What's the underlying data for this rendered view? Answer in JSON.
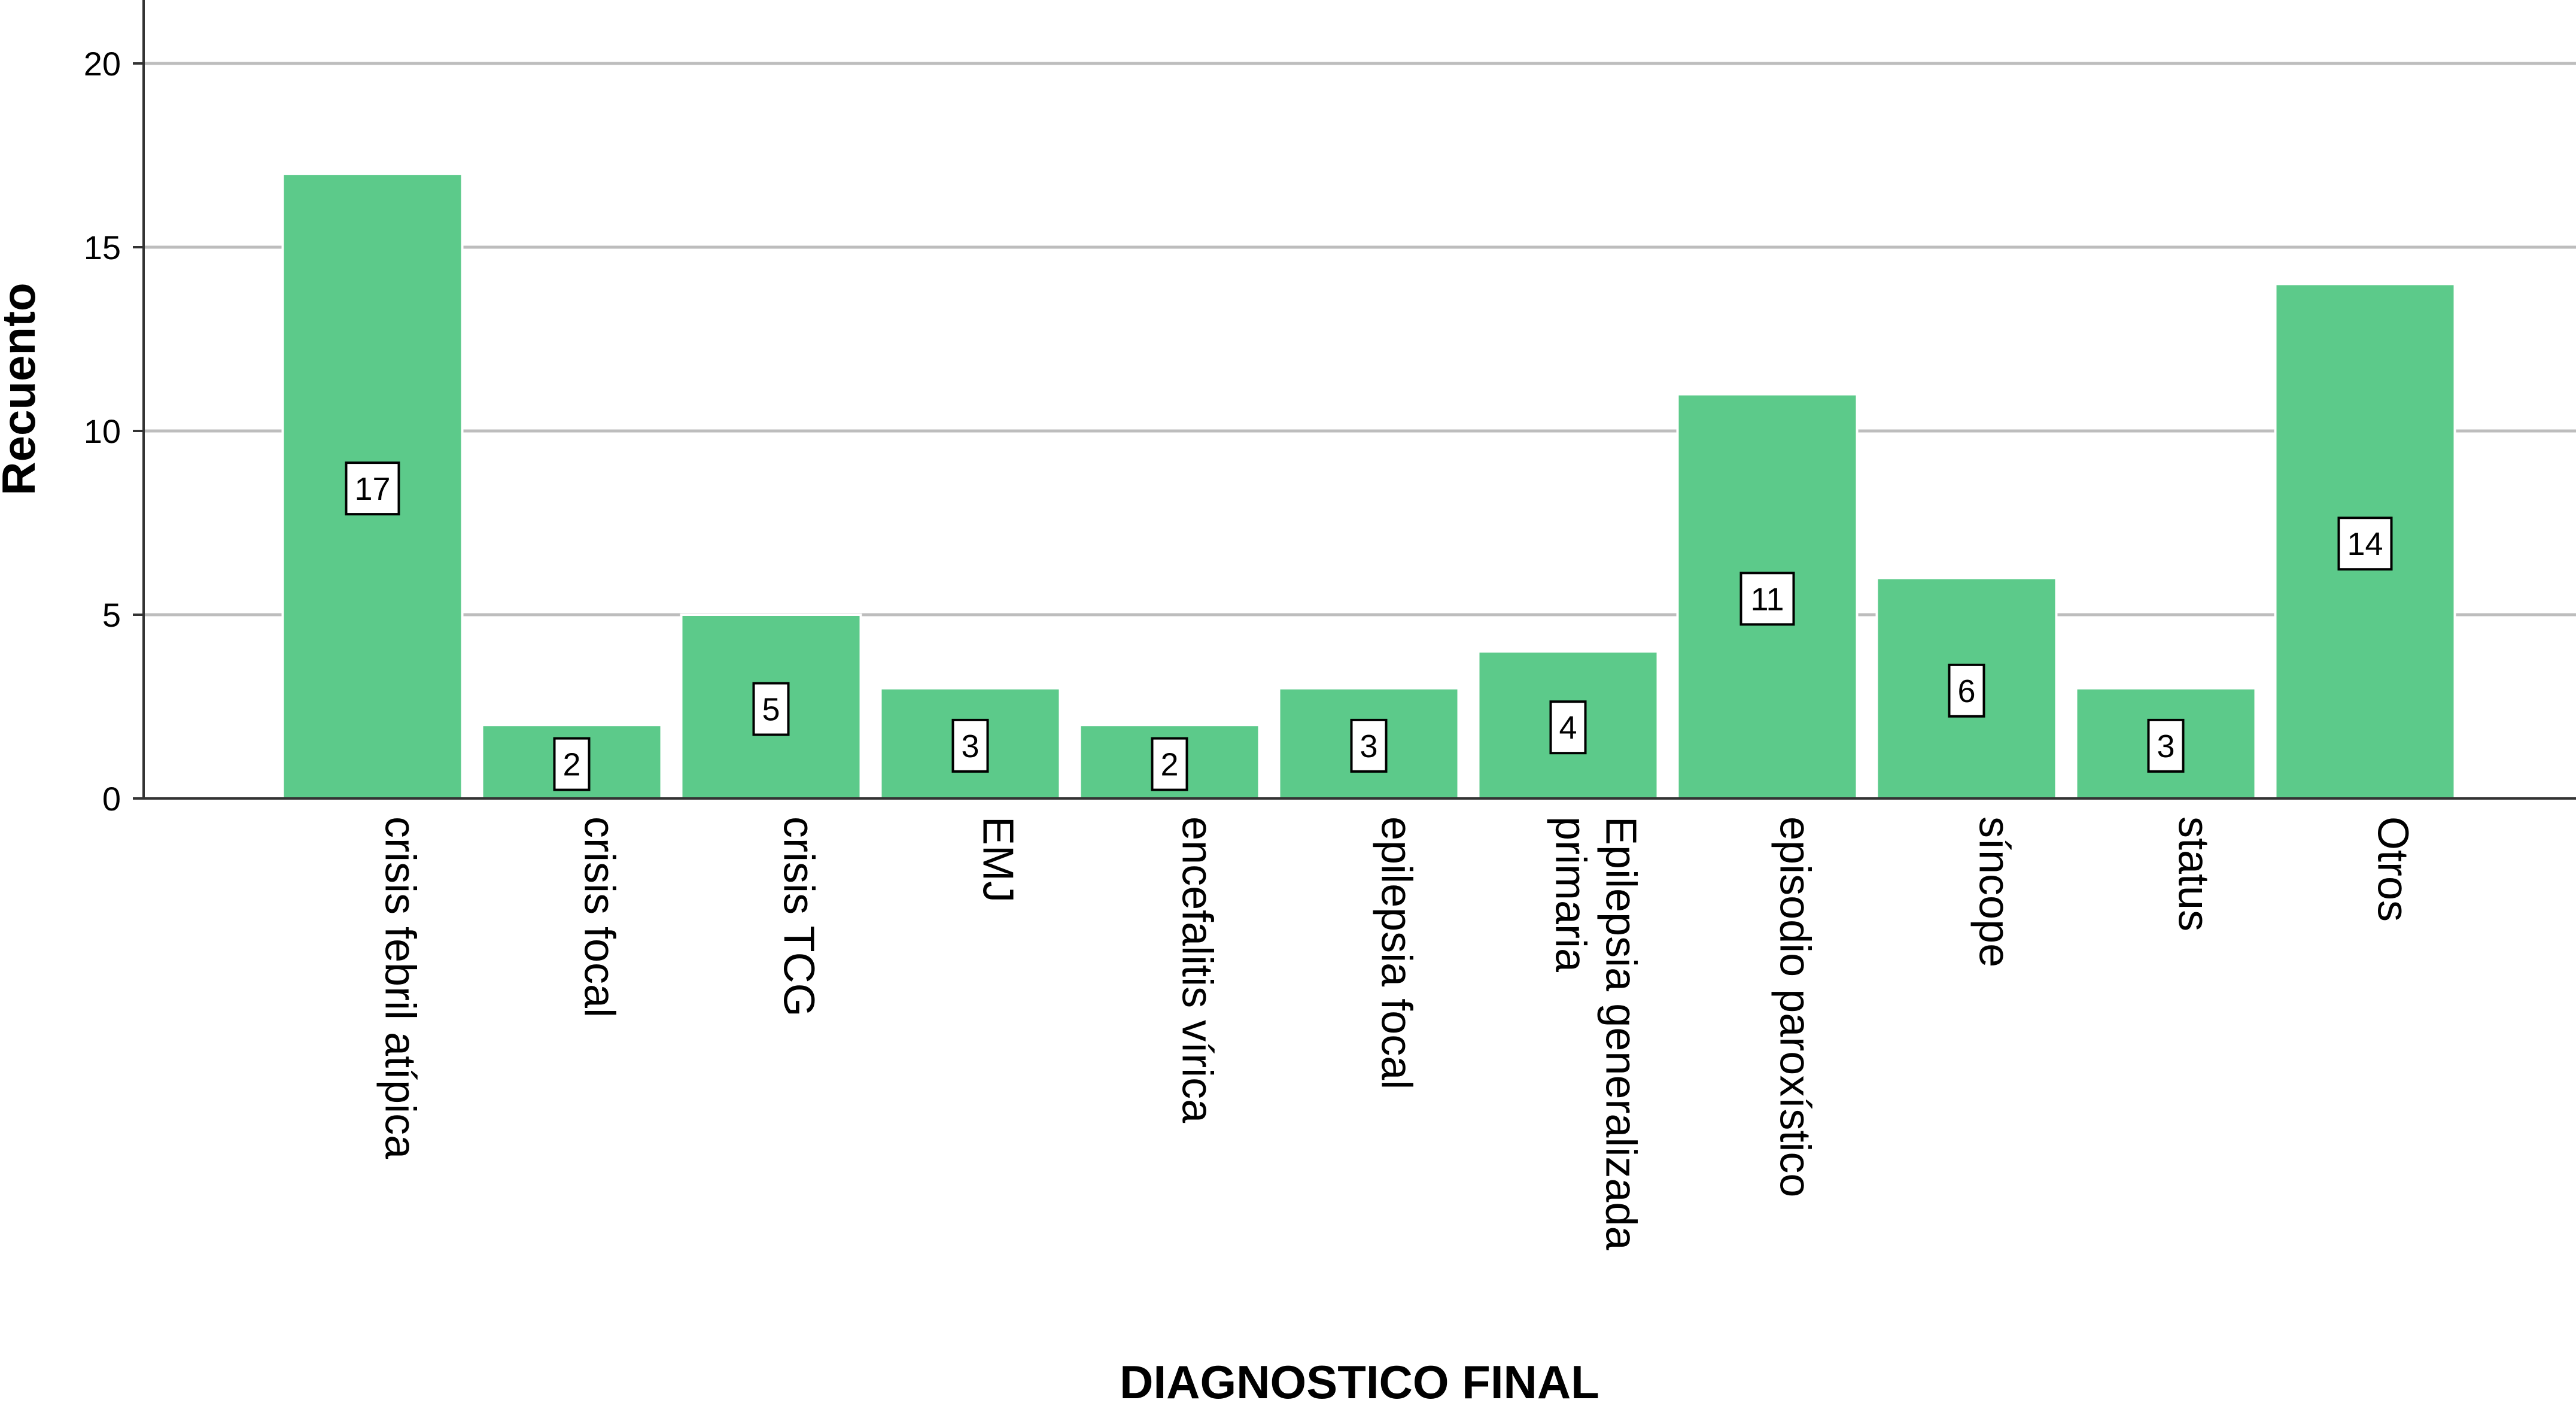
{
  "chart_data": {
    "type": "bar",
    "title": "",
    "xlabel": "DIAGNOSTICO FINAL",
    "ylabel": "Recuento",
    "categories": [
      [
        "crisis febril atípica"
      ],
      [
        "crisis focal"
      ],
      [
        "crisis TCG"
      ],
      [
        "EMJ"
      ],
      [
        "encefalitis vírica"
      ],
      [
        "epilepsia focal"
      ],
      [
        "Epilepsia generalizada",
        "primaria"
      ],
      [
        "episodio paroxístico"
      ],
      [
        "síncope"
      ],
      [
        "status"
      ],
      [
        "Otros"
      ]
    ],
    "values": [
      17,
      2,
      5,
      3,
      2,
      3,
      4,
      11,
      6,
      3,
      14
    ],
    "ylim": [
      0,
      21
    ],
    "yticks": [
      0,
      5,
      10,
      15,
      20
    ],
    "grid": true,
    "data_labels": true,
    "legend": "none",
    "colors": {
      "bar": "#5cca8a",
      "bar_edge": "#ffffff",
      "grid": "#bdbdbd",
      "axis": "#333333",
      "text": "#000000",
      "label_box_fill": "#ffffff",
      "label_box_stroke": "#000000"
    }
  }
}
